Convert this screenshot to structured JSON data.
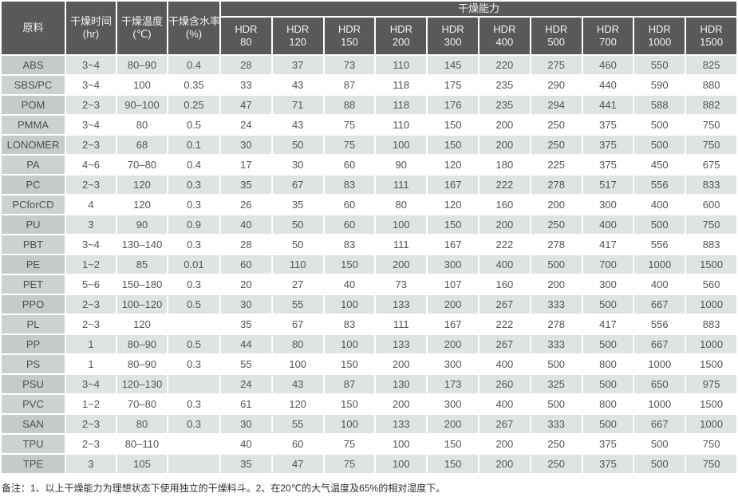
{
  "chart_data": {
    "type": "table",
    "capacity_group_header": "干燥能力",
    "left_headers": [
      {
        "line1": "原料",
        "line2": ""
      },
      {
        "line1": "干燥时间",
        "line2": "(hr)"
      },
      {
        "line1": "干燥温度",
        "line2": "(℃)"
      },
      {
        "line1": "干燥含水率",
        "line2": "(%)"
      }
    ],
    "hdr_headers": [
      {
        "line1": "HDR",
        "line2": "80"
      },
      {
        "line1": "HDR",
        "line2": "120"
      },
      {
        "line1": "HDR",
        "line2": "150"
      },
      {
        "line1": "HDR",
        "line2": "200"
      },
      {
        "line1": "HDR",
        "line2": "300"
      },
      {
        "line1": "HDR",
        "line2": "400"
      },
      {
        "line1": "HDR",
        "line2": "500"
      },
      {
        "line1": "HDR",
        "line2": "700"
      },
      {
        "line1": "HDR",
        "line2": "1000"
      },
      {
        "line1": "HDR",
        "line2": "1500"
      }
    ],
    "rows": [
      {
        "material": "ABS",
        "time": "3~4",
        "temp": "80–90",
        "moisture": "0.4",
        "capacity": [
          28,
          37,
          73,
          110,
          145,
          220,
          275,
          460,
          550,
          825
        ]
      },
      {
        "material": "SBS/PC",
        "time": "3~4",
        "temp": "100",
        "moisture": "0.35",
        "capacity": [
          33,
          43,
          87,
          118,
          175,
          235,
          290,
          440,
          590,
          880
        ]
      },
      {
        "material": "POM",
        "time": "2~3",
        "temp": "90–100",
        "moisture": "0.25",
        "capacity": [
          47,
          71,
          88,
          118,
          176,
          235,
          294,
          441,
          588,
          882
        ]
      },
      {
        "material": "PMMA",
        "time": "3~4",
        "temp": "80",
        "moisture": "0.5",
        "capacity": [
          24,
          43,
          75,
          110,
          150,
          200,
          250,
          375,
          500,
          750
        ]
      },
      {
        "material": "LONOMER",
        "time": "2~3",
        "temp": "68",
        "moisture": "0.1",
        "capacity": [
          30,
          50,
          75,
          100,
          150,
          200,
          250,
          375,
          500,
          750
        ]
      },
      {
        "material": "PA",
        "time": "4~6",
        "temp": "70–80",
        "moisture": "0.4",
        "capacity": [
          17,
          30,
          60,
          90,
          120,
          180,
          225,
          375,
          450,
          675
        ]
      },
      {
        "material": "PC",
        "time": "2~3",
        "temp": "120",
        "moisture": "0.3",
        "capacity": [
          35,
          67,
          83,
          111,
          167,
          222,
          278,
          517,
          556,
          833
        ]
      },
      {
        "material": "PCforCD",
        "time": "4",
        "temp": "120",
        "moisture": "0.3",
        "capacity": [
          26,
          35,
          60,
          80,
          120,
          160,
          200,
          300,
          400,
          600
        ]
      },
      {
        "material": "PU",
        "time": "3",
        "temp": "90",
        "moisture": "0.9",
        "capacity": [
          40,
          50,
          60,
          100,
          150,
          200,
          250,
          400,
          500,
          750
        ]
      },
      {
        "material": "PBT",
        "time": "3~4",
        "temp": "130–140",
        "moisture": "0.3",
        "capacity": [
          28,
          50,
          83,
          111,
          167,
          222,
          278,
          417,
          556,
          883
        ]
      },
      {
        "material": "PE",
        "time": "1~2",
        "temp": "85",
        "moisture": "0.01",
        "capacity": [
          60,
          110,
          150,
          200,
          300,
          400,
          500,
          700,
          1000,
          1500
        ]
      },
      {
        "material": "PET",
        "time": "5~6",
        "temp": "150–180",
        "moisture": "0.3",
        "capacity": [
          20,
          27,
          40,
          73,
          107,
          160,
          200,
          300,
          400,
          560
        ]
      },
      {
        "material": "PPO",
        "time": "2~3",
        "temp": "100–120",
        "moisture": "0.5",
        "capacity": [
          30,
          55,
          100,
          133,
          200,
          267,
          333,
          500,
          667,
          1000
        ]
      },
      {
        "material": "PL",
        "time": "2~3",
        "temp": "120",
        "moisture": "",
        "capacity": [
          35,
          67,
          83,
          111,
          167,
          222,
          278,
          417,
          556,
          883
        ]
      },
      {
        "material": "PP",
        "time": "1",
        "temp": "80–90",
        "moisture": "0.5",
        "capacity": [
          44,
          80,
          100,
          133,
          200,
          267,
          333,
          500,
          667,
          1000
        ]
      },
      {
        "material": "PS",
        "time": "1",
        "temp": "80–90",
        "moisture": "0.3",
        "capacity": [
          55,
          100,
          150,
          200,
          300,
          400,
          500,
          800,
          1000,
          1500
        ]
      },
      {
        "material": "PSU",
        "time": "3~4",
        "temp": "120–130",
        "moisture": "",
        "capacity": [
          24,
          43,
          87,
          130,
          173,
          260,
          325,
          500,
          650,
          975
        ]
      },
      {
        "material": "PVC",
        "time": "1~2",
        "temp": "70–80",
        "moisture": "0.3",
        "capacity": [
          61,
          120,
          150,
          200,
          300,
          400,
          500,
          800,
          1000,
          1500
        ]
      },
      {
        "material": "SAN",
        "time": "2~3",
        "temp": "80",
        "moisture": "0.3",
        "capacity": [
          30,
          55,
          100,
          133,
          200,
          267,
          333,
          500,
          667,
          1000
        ]
      },
      {
        "material": "TPU",
        "time": "2~3",
        "temp": "80–110",
        "moisture": "",
        "capacity": [
          40,
          60,
          75,
          100,
          150,
          200,
          250,
          375,
          500,
          750
        ]
      },
      {
        "material": "TPE",
        "time": "3",
        "temp": "105",
        "moisture": "",
        "capacity": [
          35,
          47,
          75,
          100,
          150,
          200,
          250,
          375,
          500,
          750
        ]
      }
    ]
  },
  "note": "备注：1、以上干燥能力为理想状态下使用独立的干燥料斗。2、在20℃的大气温度及65%的相对湿度下。",
  "colors": {
    "header_bg": "#58595b",
    "header_text": "#f2f2f2",
    "row_stripe": "#e0e3e3",
    "row_plain": "#ffffff",
    "material_stripe": "#c6caca",
    "material_plain": "#ced1d1",
    "cell_text": "#525457"
  }
}
